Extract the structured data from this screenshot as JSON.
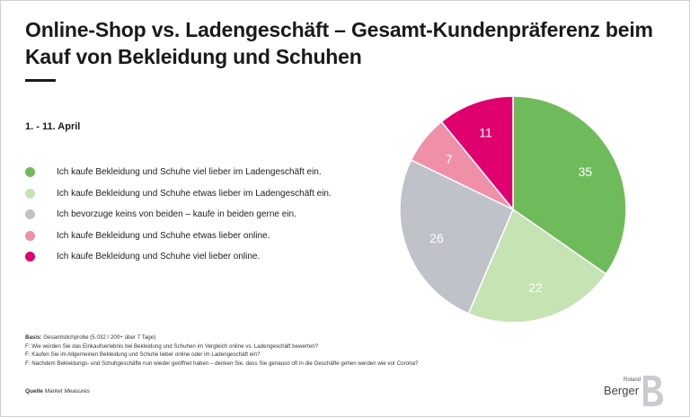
{
  "title": "Online-Shop vs. Ladengeschäft – Gesamt-Kundenpräferenz beim Kauf von Bekleidung und Schuhen",
  "period": "1. - 11. April",
  "legend": [
    {
      "label": "Ich kaufe Bekleidung und Schuhe viel lieber im Ladengeschäft ein.",
      "color": "#6fbb5b"
    },
    {
      "label": "Ich kaufe Bekleidung und Schuhe etwas lieber im Ladengeschäft ein.",
      "color": "#c5e3b3"
    },
    {
      "label": "Ich bevorzuge keins von beiden – kaufe in beiden gerne ein.",
      "color": "#bfc2c8"
    },
    {
      "label": "Ich kaufe Bekleidung und Schuhe etwas lieber online.",
      "color": "#ef8fa8"
    },
    {
      "label": "Ich kaufe Bekleidung und Schuhe viel lieber online.",
      "color": "#e0006f"
    }
  ],
  "chart_data": {
    "type": "pie",
    "categories": [
      "Ich kaufe Bekleidung und Schuhe viel lieber im Ladengeschäft ein.",
      "Ich kaufe Bekleidung und Schuhe etwas lieber im Ladengeschäft ein.",
      "Ich bevorzuge keins von beiden – kaufe in beiden gerne ein.",
      "Ich kaufe Bekleidung und Schuhe etwas lieber online.",
      "Ich kaufe Bekleidung und Schuhe viel lieber online."
    ],
    "values": [
      35,
      22,
      26,
      7,
      11
    ],
    "colors": [
      "#6fbb5b",
      "#c5e3b3",
      "#bfc2c8",
      "#ef8fa8",
      "#e0006f"
    ],
    "start": "12 o'clock",
    "direction": "clockwise",
    "legend_position": "left"
  },
  "notes": {
    "basis_label": "Basis:",
    "basis_text": "Gesamtstichprobe (5.032 / 200+ über 7 Tage)",
    "q1": "F: Wie würden Sie das Einkaufserlebnis bei Bekleidung und Schuhen im Vergleich online vs. Ladengeschäft bewerten?",
    "q2": "F: Kaufen Sie im Allgemeinen Bekleidung und Schuhe lieber online oder im Ladengeschäft ein?",
    "q3": "F: Nachdem Bekleidungs- und Schuhgeschäfte nun wieder geöffnet haben – denken Sie, dass Sie genauso oft in die Geschäfte gehen werden wie vor Corona?"
  },
  "source": {
    "label": "Quelle",
    "text": "Market Measures"
  },
  "logo": {
    "line1": "Roland",
    "line2": "Berger"
  }
}
